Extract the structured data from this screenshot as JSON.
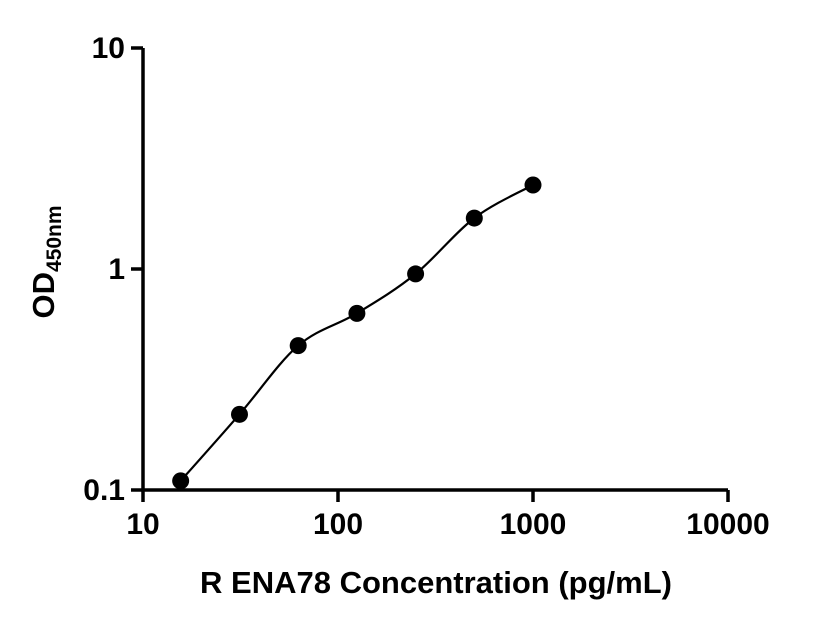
{
  "chart_data": {
    "type": "scatter",
    "title": "",
    "xlabel": "R ENA78 Concentration (pg/mL)",
    "ylabel_main": "OD",
    "ylabel_sub": "450nm",
    "x_scale": "log",
    "y_scale": "log",
    "xlim": [
      10,
      10000
    ],
    "ylim": [
      0.1,
      10
    ],
    "x_ticks": [
      10,
      100,
      1000,
      10000
    ],
    "x_tick_labels": [
      "10",
      "100",
      "1000",
      "10000"
    ],
    "y_ticks": [
      0.1,
      1,
      10
    ],
    "y_tick_labels": [
      "0.1",
      "1",
      "10"
    ],
    "grid": false,
    "legend": "none",
    "fit_curve": true,
    "marker_color": "#000000",
    "series": [
      {
        "x": [
          15.6,
          31.25,
          62.5,
          125,
          250,
          500,
          1000
        ],
        "y": [
          0.11,
          0.22,
          0.45,
          0.63,
          0.95,
          1.7,
          2.4
        ]
      }
    ]
  }
}
